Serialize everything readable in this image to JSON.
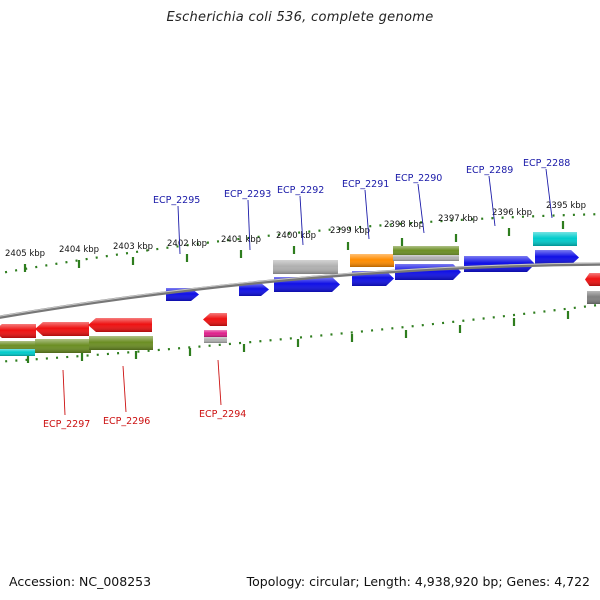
{
  "title": "Escherichia coli 536, complete genome",
  "accession": "Accession: NC_008253",
  "summary": "Topology: circular; Length: 4,938,920 bp; Genes: 4,722",
  "colors": {
    "tick": "#2e7d1e",
    "backbone": "#808080",
    "forward_label": "#1a1aa8",
    "reverse_label": "#cc1111",
    "cds": "#1010e6",
    "cds_reverse": "#ee1111",
    "rna": "#ff8c00",
    "gene": "#6b8e23",
    "pseudo": "#b0b0b0",
    "other": "#00cccc",
    "trna": "#e0208c"
  },
  "scale_labels": [
    "2405 kbp",
    "2404 kbp",
    "2403 kbp",
    "2402 kbp",
    "2401 kbp",
    "2400 kbp",
    "2399 kbp",
    "2398 kbp",
    "2397 kbp",
    "2396 kbp",
    "2395 kbp"
  ],
  "forward_gene_labels": [
    "ECP_2295",
    "ECP_2293",
    "ECP_2292",
    "ECP_2291",
    "ECP_2290",
    "ECP_2289",
    "ECP_2288"
  ],
  "reverse_gene_labels": [
    "ECP_2297",
    "ECP_2296",
    "ECP_2294"
  ]
}
